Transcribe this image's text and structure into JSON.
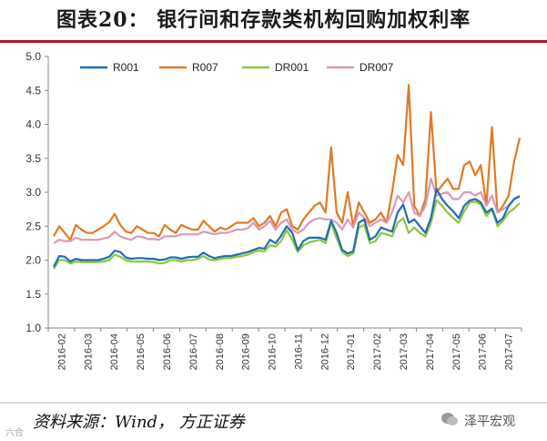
{
  "header": {
    "title": "图表20：  银行间和存款类机构回购加权利率"
  },
  "footer": {
    "source": "资料来源：Wind， 方正证券",
    "watermark": "泽平宏观",
    "corner_mark": "六合"
  },
  "chart_data": {
    "type": "line",
    "title": "",
    "xlabel": "",
    "ylabel": "",
    "ylim": [
      1.0,
      5.0
    ],
    "yticks": [
      "1.0",
      "1.5",
      "2.0",
      "2.5",
      "3.0",
      "3.5",
      "4.0",
      "4.5",
      "5.0"
    ],
    "x_tick_labels": [
      "2016-02",
      "2016-03",
      "2016-04",
      "2016-05",
      "2016-06",
      "2016-07",
      "2016-08",
      "2016-09",
      "2016-10",
      "2016-11",
      "2016-12",
      "2017-01",
      "2017-02",
      "2017-03",
      "2017-04",
      "2017-05",
      "2017-06",
      "2017-07"
    ],
    "legend_position": "top",
    "colors": {
      "R001": "#1f6fb0",
      "R007": "#e07a26",
      "DR001": "#8cc63f",
      "DR007": "#d99ab5"
    },
    "series": [
      {
        "name": "R001",
        "values": [
          1.9,
          2.06,
          2.05,
          1.98,
          2.02,
          2.0,
          2.0,
          2.0,
          2.0,
          2.02,
          2.05,
          2.14,
          2.12,
          2.04,
          2.02,
          2.03,
          2.03,
          2.02,
          2.02,
          2.0,
          2.01,
          2.04,
          2.04,
          2.02,
          2.04,
          2.05,
          2.05,
          2.11,
          2.06,
          2.03,
          2.05,
          2.06,
          2.06,
          2.08,
          2.1,
          2.12,
          2.15,
          2.18,
          2.17,
          2.3,
          2.25,
          2.36,
          2.5,
          2.4,
          2.15,
          2.28,
          2.33,
          2.33,
          2.33,
          2.3,
          2.58,
          2.4,
          2.15,
          2.1,
          2.13,
          2.55,
          2.6,
          2.3,
          2.35,
          2.48,
          2.45,
          2.42,
          2.7,
          2.82,
          2.55,
          2.6,
          2.5,
          2.4,
          2.62,
          3.05,
          2.9,
          2.8,
          2.72,
          2.62,
          2.8,
          2.88,
          2.9,
          2.85,
          2.7,
          2.76,
          2.55,
          2.62,
          2.8,
          2.9,
          2.94
        ]
      },
      {
        "name": "R007",
        "values": [
          2.35,
          2.5,
          2.4,
          2.3,
          2.52,
          2.45,
          2.4,
          2.4,
          2.45,
          2.5,
          2.56,
          2.68,
          2.52,
          2.42,
          2.4,
          2.5,
          2.45,
          2.4,
          2.4,
          2.35,
          2.52,
          2.45,
          2.4,
          2.52,
          2.48,
          2.45,
          2.45,
          2.58,
          2.5,
          2.42,
          2.48,
          2.45,
          2.5,
          2.55,
          2.55,
          2.55,
          2.62,
          2.5,
          2.55,
          2.65,
          2.5,
          2.7,
          2.75,
          2.5,
          2.45,
          2.6,
          2.7,
          2.8,
          2.85,
          2.7,
          3.66,
          2.7,
          2.55,
          3.0,
          2.5,
          2.85,
          2.7,
          2.55,
          2.6,
          2.7,
          2.55,
          3.0,
          3.55,
          3.4,
          4.58,
          2.8,
          2.65,
          2.9,
          4.18,
          3.0,
          3.1,
          3.2,
          3.05,
          3.05,
          3.4,
          3.45,
          3.25,
          3.4,
          2.8,
          3.96,
          2.7,
          2.8,
          2.95,
          3.45,
          3.8
        ]
      },
      {
        "name": "DR001",
        "values": [
          1.87,
          2.0,
          2.0,
          1.95,
          1.98,
          1.97,
          1.97,
          1.97,
          1.97,
          1.98,
          2.0,
          2.08,
          2.05,
          2.0,
          1.98,
          1.98,
          1.98,
          1.98,
          1.97,
          1.95,
          1.96,
          2.0,
          2.0,
          1.98,
          2.0,
          2.0,
          2.02,
          2.06,
          2.01,
          2.0,
          2.02,
          2.03,
          2.03,
          2.05,
          2.06,
          2.08,
          2.12,
          2.14,
          2.13,
          2.22,
          2.2,
          2.28,
          2.44,
          2.3,
          2.12,
          2.22,
          2.26,
          2.28,
          2.3,
          2.25,
          2.55,
          2.32,
          2.12,
          2.06,
          2.1,
          2.48,
          2.52,
          2.25,
          2.28,
          2.4,
          2.38,
          2.35,
          2.55,
          2.62,
          2.4,
          2.48,
          2.4,
          2.35,
          2.55,
          2.88,
          2.8,
          2.7,
          2.62,
          2.55,
          2.72,
          2.85,
          2.86,
          2.82,
          2.65,
          2.75,
          2.5,
          2.58,
          2.7,
          2.76,
          2.84
        ]
      },
      {
        "name": "DR007",
        "values": [
          2.25,
          2.3,
          2.28,
          2.28,
          2.33,
          2.3,
          2.3,
          2.3,
          2.3,
          2.32,
          2.34,
          2.42,
          2.35,
          2.32,
          2.3,
          2.35,
          2.34,
          2.31,
          2.31,
          2.3,
          2.35,
          2.35,
          2.35,
          2.38,
          2.38,
          2.38,
          2.38,
          2.42,
          2.4,
          2.38,
          2.4,
          2.4,
          2.42,
          2.45,
          2.45,
          2.47,
          2.55,
          2.45,
          2.5,
          2.58,
          2.45,
          2.55,
          2.6,
          2.45,
          2.4,
          2.45,
          2.55,
          2.6,
          2.62,
          2.6,
          2.6,
          2.55,
          2.45,
          2.6,
          2.48,
          2.7,
          2.62,
          2.5,
          2.55,
          2.6,
          2.55,
          2.7,
          2.95,
          2.85,
          3.0,
          2.7,
          2.65,
          2.8,
          3.2,
          2.95,
          2.98,
          3.0,
          2.9,
          2.9,
          3.0,
          3.0,
          2.95,
          3.0,
          2.8,
          2.95,
          2.7,
          2.75,
          2.8,
          2.9,
          2.95
        ]
      }
    ]
  }
}
